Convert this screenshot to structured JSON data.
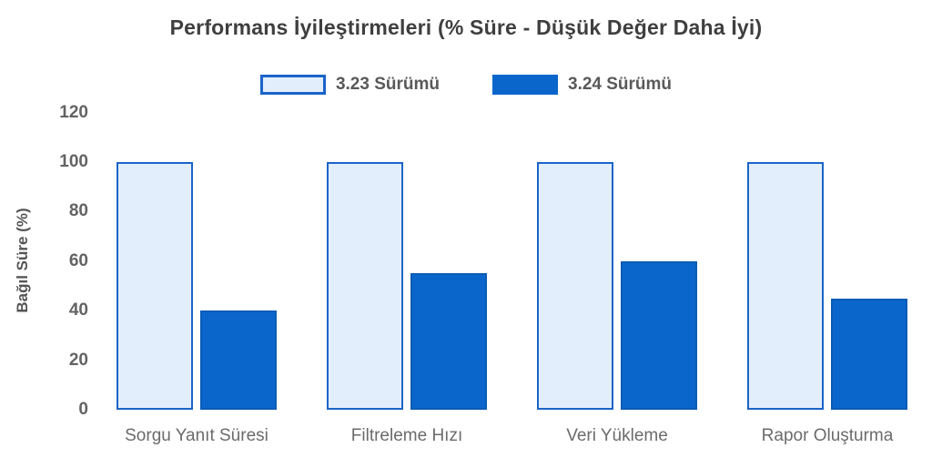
{
  "chart_data": {
    "type": "bar",
    "title": "Performans İyileştirmeleri (% Süre - Düşük Değer Daha İyi)",
    "categories": [
      "Sorgu Yanıt Süresi",
      "Filtreleme Hızı",
      "Veri Yükleme",
      "Rapor Oluşturma"
    ],
    "series": [
      {
        "name": "3.23 Sürümü",
        "values": [
          100,
          100,
          100,
          100
        ],
        "fill": "#e3eefc",
        "border": "#1b64c8"
      },
      {
        "name": "3.24 Sürümü",
        "values": [
          40,
          55,
          60,
          45
        ],
        "fill": "#0a66cb",
        "border": "#0a5cb5"
      }
    ],
    "xlabel": "",
    "ylabel": "Bağıl Süre (%)",
    "ylim": [
      0,
      120
    ],
    "yticks": [
      0,
      20,
      40,
      60,
      80,
      100,
      120
    ],
    "grid": false,
    "legend_position": "top-center",
    "note": "lower value is better; values are relative time in percent"
  },
  "colors": {
    "title_text": "#3f3f3f",
    "axis_text": "#636363",
    "legend_text": "#595959",
    "light_bar_fill": "#e3eefc",
    "light_bar_border": "#1b64c8",
    "dark_bar_fill": "#0a66cb",
    "background": "#ffffff"
  }
}
